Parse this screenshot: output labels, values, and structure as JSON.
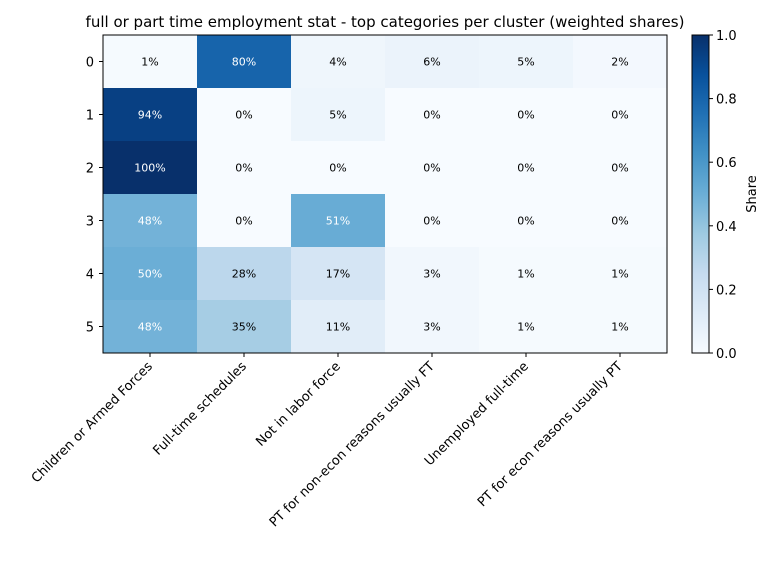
{
  "chart_data": {
    "type": "heatmap",
    "title": "full or part time employment stat - top categories per cluster (weighted shares)",
    "xlabel": "",
    "ylabel": "",
    "x_categories": [
      "Children or Armed Forces",
      "Full-time schedules",
      "Not in labor force",
      "PT for non-econ reasons usually FT",
      "Unemployed full-time",
      "PT for econ reasons usually PT"
    ],
    "y_categories": [
      "0",
      "1",
      "2",
      "3",
      "4",
      "5"
    ],
    "values": [
      [
        0.01,
        0.8,
        0.04,
        0.06,
        0.05,
        0.02
      ],
      [
        0.94,
        0.0,
        0.05,
        0.0,
        0.0,
        0.0
      ],
      [
        1.0,
        0.0,
        0.0,
        0.0,
        0.0,
        0.0
      ],
      [
        0.48,
        0.0,
        0.51,
        0.0,
        0.0,
        0.0
      ],
      [
        0.5,
        0.28,
        0.17,
        0.03,
        0.01,
        0.01
      ],
      [
        0.48,
        0.35,
        0.11,
        0.03,
        0.01,
        0.01
      ]
    ],
    "cell_labels": [
      [
        "1%",
        "80%",
        "4%",
        "6%",
        "5%",
        "2%"
      ],
      [
        "94%",
        "0%",
        "5%",
        "0%",
        "0%",
        "0%"
      ],
      [
        "100%",
        "0%",
        "0%",
        "0%",
        "0%",
        "0%"
      ],
      [
        "48%",
        "0%",
        "51%",
        "0%",
        "0%",
        "0%"
      ],
      [
        "50%",
        "28%",
        "17%",
        "3%",
        "1%",
        "1%"
      ],
      [
        "48%",
        "35%",
        "11%",
        "3%",
        "1%",
        "1%"
      ]
    ],
    "colorbar": {
      "label": "Share",
      "range": [
        0.0,
        1.0
      ],
      "ticks": [
        "0.0",
        "0.2",
        "0.4",
        "0.6",
        "0.8",
        "1.0"
      ],
      "colormap": "Blues"
    },
    "grid": false
  }
}
